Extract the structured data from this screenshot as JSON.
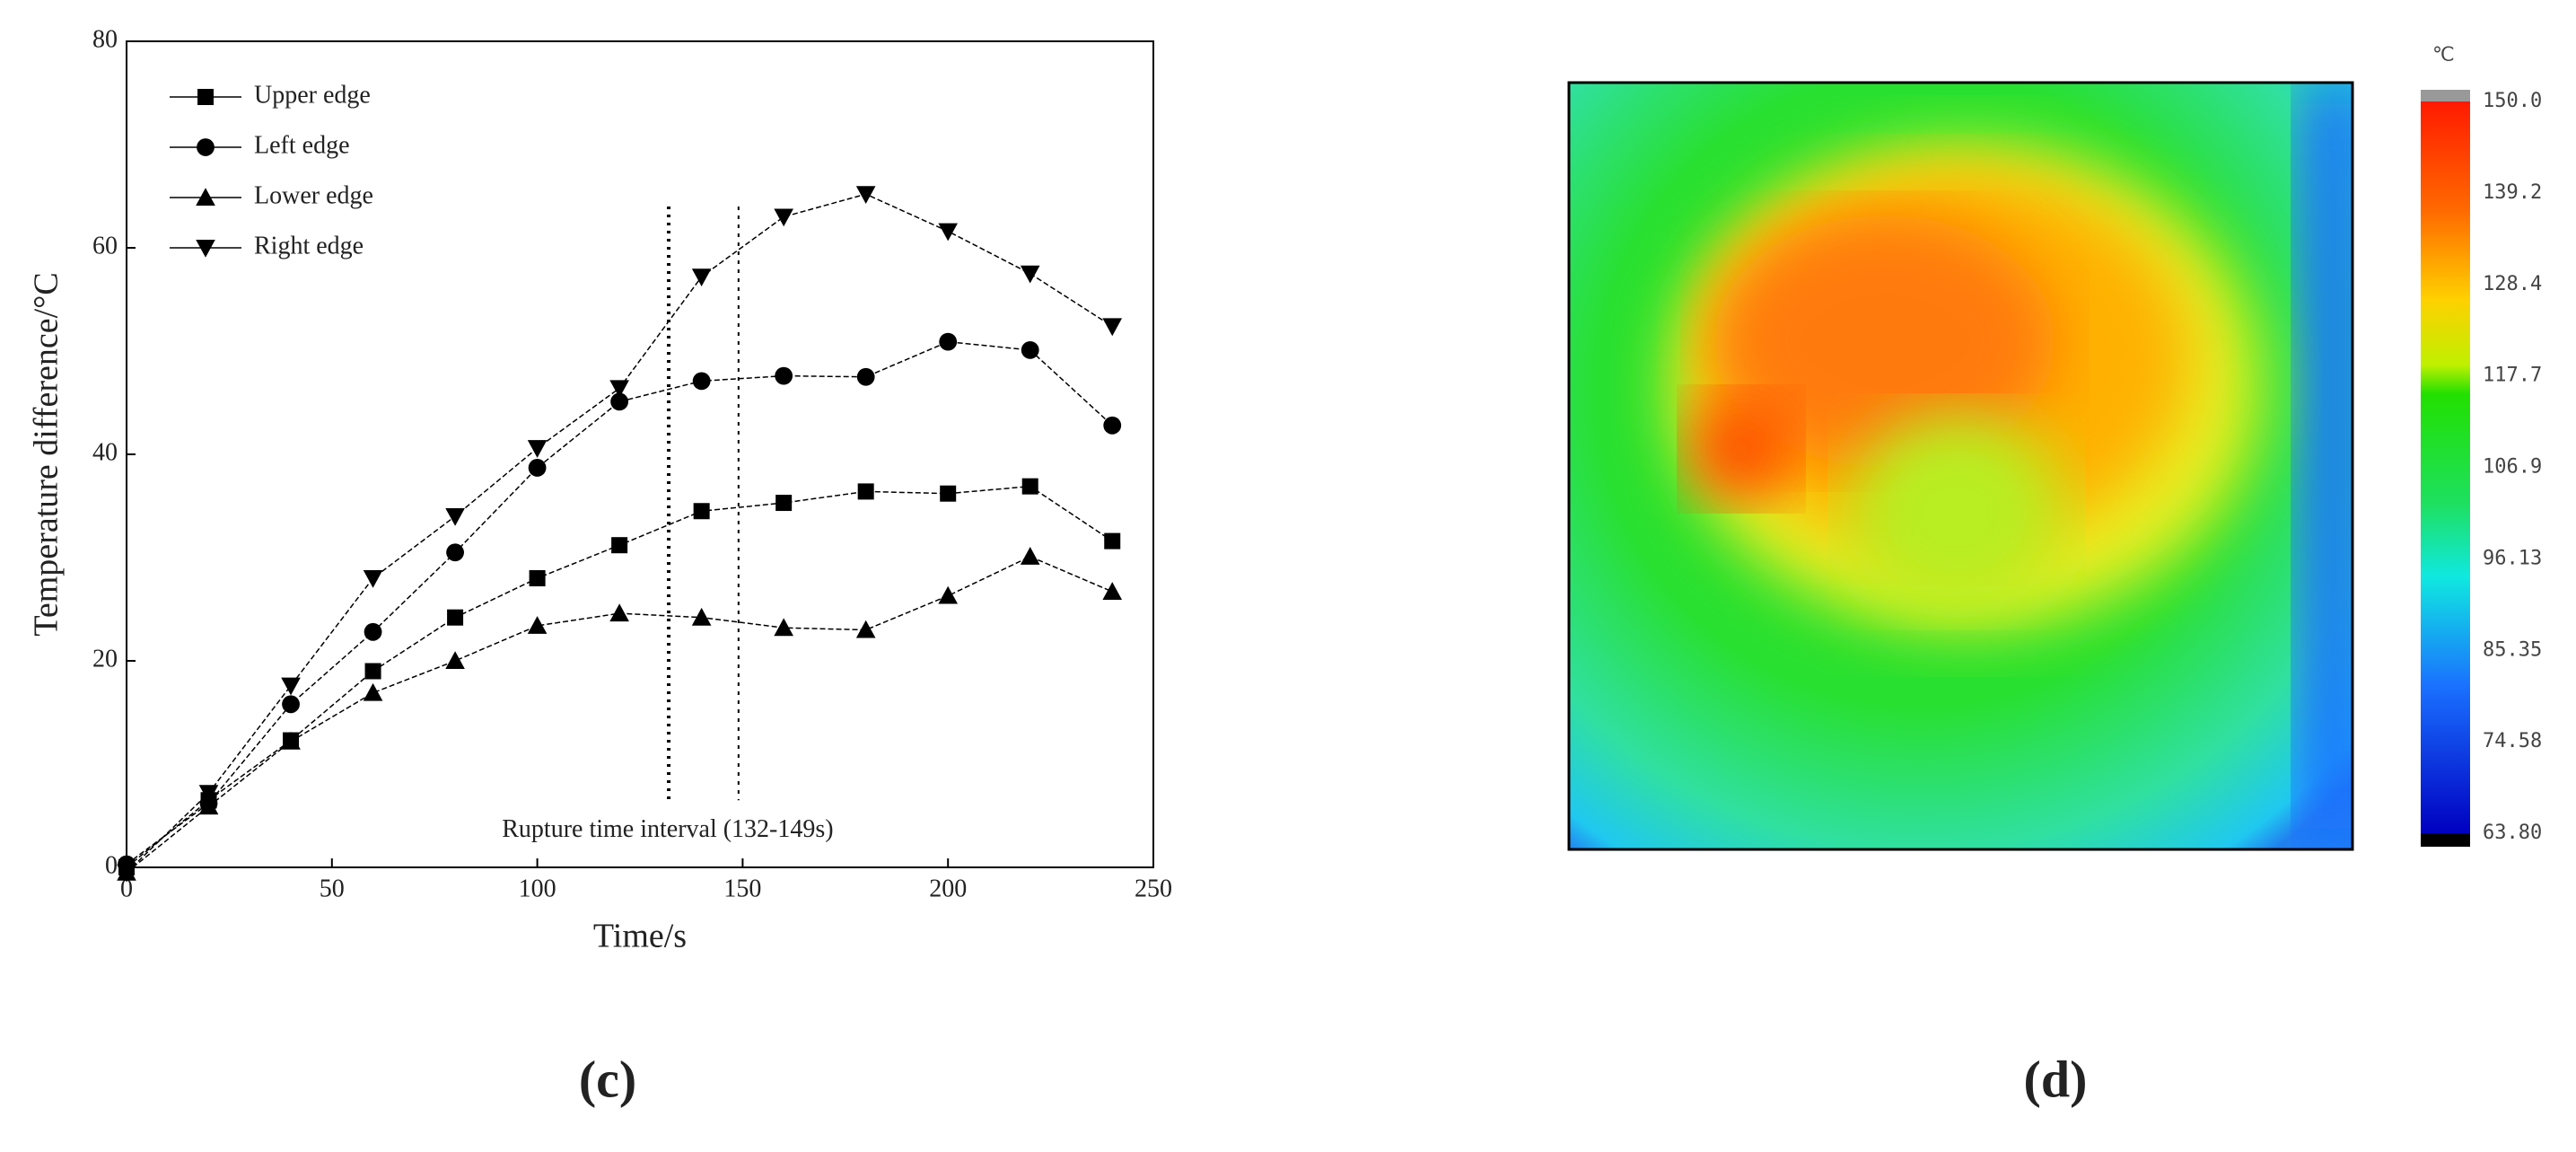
{
  "chart_data": [
    {
      "type": "line",
      "panel_label": "(c)",
      "x_label": "Time/s",
      "y_label": "Temperature difference/°C",
      "x": [
        0,
        20,
        40,
        60,
        80,
        100,
        120,
        140,
        160,
        180,
        200,
        220,
        240
      ],
      "series": [
        {
          "name": "Upper edge",
          "color": "#000000",
          "marker": "square",
          "values": [
            0,
            6.5,
            12.3,
            19,
            24.2,
            28,
            31.2,
            34.5,
            35.3,
            36.4,
            36.2,
            36.9,
            31.6
          ]
        },
        {
          "name": "Left edge",
          "color": "#000000",
          "marker": "circle",
          "values": [
            0.3,
            6.2,
            15.8,
            22.8,
            30.5,
            38.7,
            45.1,
            47.1,
            47.6,
            47.5,
            50.9,
            50.1,
            42.8
          ]
        },
        {
          "name": "Lower edge",
          "color": "#000000",
          "marker": "triangle-up",
          "values": [
            -0.5,
            5.9,
            12.2,
            16.9,
            20,
            23.4,
            24.6,
            24.2,
            23.2,
            23,
            26.3,
            30.1,
            26.7
          ]
        },
        {
          "name": "Right edge",
          "color": "#000000",
          "marker": "triangle-down",
          "values": [
            -0.5,
            7.2,
            17.6,
            28,
            34,
            40.6,
            46.4,
            57.2,
            63,
            65.2,
            61.6,
            57.5,
            52.4
          ]
        }
      ],
      "vlines": [
        132,
        149
      ],
      "annotation": "Rupture time interval (132-149s)",
      "xlim": [
        0,
        250
      ],
      "xticks": [
        0,
        50,
        100,
        150,
        200,
        250
      ],
      "ylim": [
        0,
        80
      ],
      "yticks": [
        0,
        20,
        40,
        60,
        80
      ],
      "legend": "upper-left"
    },
    {
      "type": "heatmap",
      "panel_label": "(d)",
      "colorbar_title": "℃",
      "clim": [
        63.8,
        150
      ],
      "colorbar_ticks": [
        {
          "value": 150,
          "label": "150.0"
        },
        {
          "value": 139.2,
          "label": "139.2"
        },
        {
          "value": 128.4,
          "label": "128.4"
        },
        {
          "value": 117.7,
          "label": "117.7"
        },
        {
          "value": 106.9,
          "label": "106.9"
        },
        96.13,
        85.35,
        74.58,
        {
          "value": 63.8,
          "label": "63.80"
        }
      ]
    }
  ]
}
